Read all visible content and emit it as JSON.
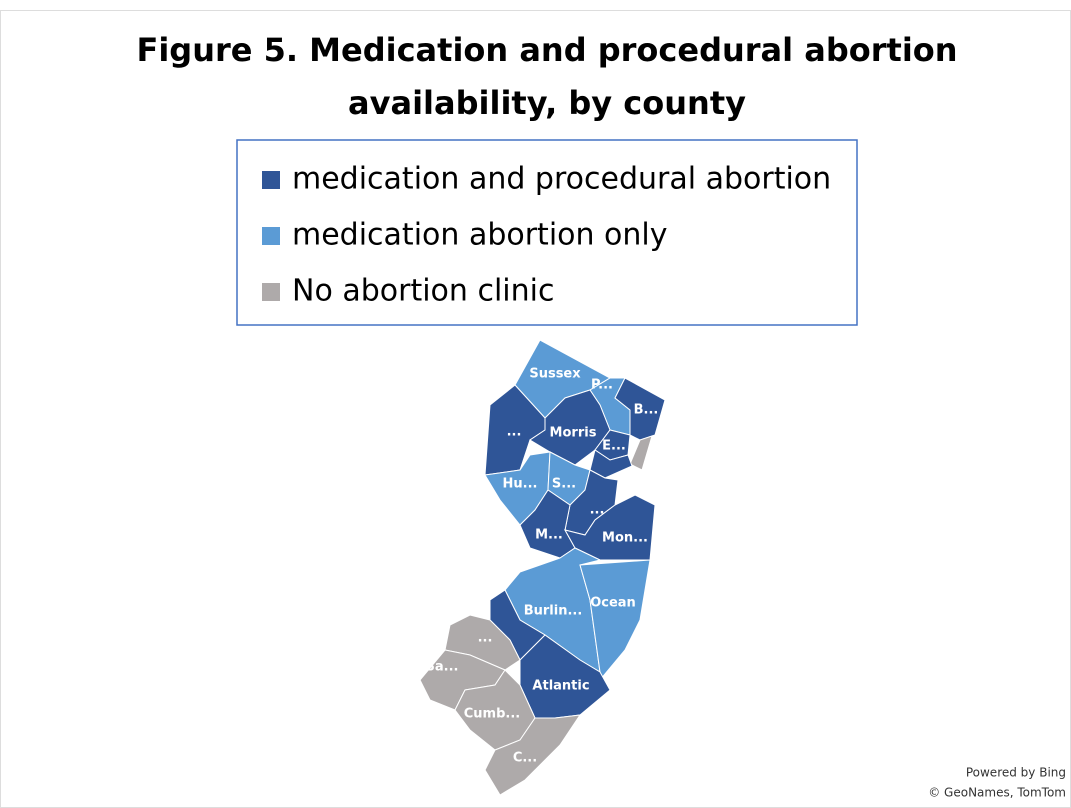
{
  "title": [
    "Figure 5. Medication and procedural abortion",
    "availability, by county"
  ],
  "legend": [
    {
      "name": "medication and procedural abortion",
      "color": "#2f5597"
    },
    {
      "name": "medication abortion only",
      "color": "#5b9bd5"
    },
    {
      "name": "No abortion clinic",
      "color": "#aeaaaa"
    }
  ],
  "counties": [
    {
      "label": "Sussex",
      "category": "medication abortion only"
    },
    {
      "label": "P...",
      "category": "medication abortion only"
    },
    {
      "label": "B...",
      "category": "medication and procedural abortion"
    },
    {
      "label": "...",
      "category": "medication and procedural abortion"
    },
    {
      "label": "Morris",
      "category": "medication and procedural abortion"
    },
    {
      "label": "E...",
      "category": "medication and procedural abortion"
    },
    {
      "label": null,
      "category": "No abortion clinic"
    },
    {
      "label": null,
      "category": "medication and procedural abortion"
    },
    {
      "label": "Hu...",
      "category": "medication abortion only"
    },
    {
      "label": "S...",
      "category": "medication abortion only"
    },
    {
      "label": "...",
      "category": "medication and procedural abortion"
    },
    {
      "label": "M...",
      "category": "medication and procedural abortion"
    },
    {
      "label": "Mon...",
      "category": "medication and procedural abortion"
    },
    {
      "label": "Burlin...",
      "category": "medication abortion only"
    },
    {
      "label": "Ocean",
      "category": "medication abortion only"
    },
    {
      "label": null,
      "category": "medication and procedural abortion"
    },
    {
      "label": "...",
      "category": "No abortion clinic"
    },
    {
      "label": "Atlantic",
      "category": "medication and procedural abortion"
    },
    {
      "label": "Sa...",
      "category": "No abortion clinic"
    },
    {
      "label": "Cumb...",
      "category": "No abortion clinic"
    },
    {
      "label": "C...",
      "category": "No abortion clinic"
    }
  ],
  "attribution": [
    "Powered by Bing",
    "© GeoNames, TomTom"
  ]
}
